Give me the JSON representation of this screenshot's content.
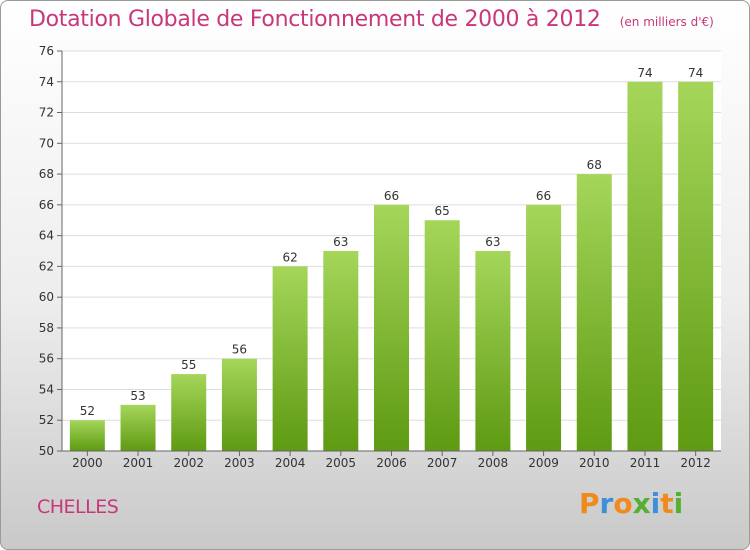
{
  "header": {
    "title": "Dotation Globale de Fonctionnement de 2000 à 2012",
    "unit": "(en milliers d'€)"
  },
  "footer": {
    "city": "CHELLES",
    "logo_letters": [
      "P",
      "r",
      "o",
      "x",
      "i",
      "t",
      "i"
    ]
  },
  "colors": {
    "title": "#c8377a",
    "bar_top": "#a5d65a",
    "bar_bottom": "#5e9a12",
    "grid": "#dddddd",
    "logo": [
      "#ef8a1c",
      "#3f8fd8",
      "#ef8a1c",
      "#55b030",
      "#3f8fd8",
      "#ef8a1c",
      "#55b030"
    ]
  },
  "chart_data": {
    "type": "bar",
    "categories": [
      "2000",
      "2001",
      "2002",
      "2003",
      "2004",
      "2005",
      "2006",
      "2007",
      "2008",
      "2009",
      "2010",
      "2011",
      "2012"
    ],
    "values": [
      52,
      53,
      55,
      56,
      62,
      63,
      66,
      65,
      63,
      66,
      68,
      74,
      74
    ],
    "title": "Dotation Globale de Fonctionnement de 2000 à 2012",
    "xlabel": "",
    "ylabel": "",
    "ylim": [
      50,
      76
    ],
    "yticks": [
      50,
      52,
      54,
      56,
      58,
      60,
      62,
      64,
      66,
      68,
      70,
      72,
      74,
      76
    ],
    "grid": true,
    "data_labels": true
  }
}
